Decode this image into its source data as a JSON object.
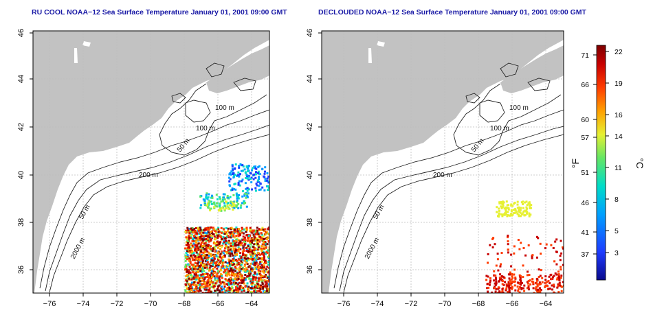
{
  "panels": [
    {
      "title": "RU COOL NOAA−12 Sea Surface Temperature January 01, 2001 09:00 GMT",
      "xticks": [
        "−76",
        "−74",
        "−72",
        "−70",
        "−68",
        "−66",
        "−64"
      ],
      "yticks": [
        "46",
        "44",
        "42",
        "40",
        "38",
        "36"
      ],
      "contour_labels": [
        "100 m",
        "100 m",
        "50 m",
        "200 m",
        "50 m",
        "2000 m"
      ]
    },
    {
      "title": "DECLOUDED NOAA−12 Sea Surface Temperature January 01, 2001 09:00 GMT",
      "xticks": [
        "−76",
        "−74",
        "−72",
        "−70",
        "−68",
        "−66",
        "−64"
      ],
      "yticks": [
        "46",
        "44",
        "42",
        "40",
        "38",
        "36"
      ],
      "contour_labels": [
        "100 m",
        "100 m",
        "50 m",
        "200 m",
        "50 m",
        "2000 m"
      ]
    }
  ],
  "map_extent": {
    "lon_range": [
      -77,
      -63
    ],
    "lat_range": [
      35,
      46
    ]
  },
  "colorbar": {
    "f_label": "°F",
    "c_label": "°C",
    "f_ticks": [
      "71",
      "66",
      "60",
      "57",
      "51",
      "46",
      "41",
      "37"
    ],
    "c_ticks": [
      "22",
      "19",
      "16",
      "14",
      "11",
      "8",
      "5",
      "3"
    ]
  },
  "colors": {
    "title": "#1a1aa6",
    "land": "#c2c2c2",
    "ocean": "#ffffff",
    "grid": "#bdbdbd",
    "colormap": [
      "#0a0a8c",
      "#1e3cff",
      "#00a0ff",
      "#00dcc8",
      "#64e664",
      "#e6f032",
      "#ffa000",
      "#ff3c00",
      "#c80000",
      "#7d0000"
    ]
  }
}
